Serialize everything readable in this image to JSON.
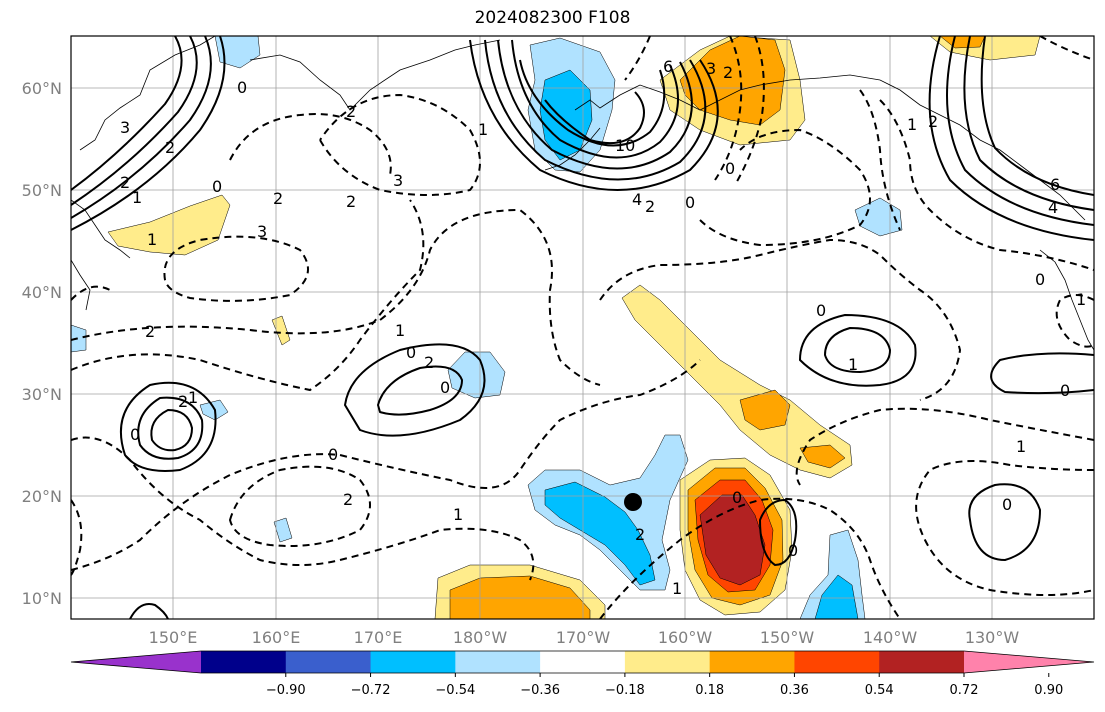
{
  "title": "2024082300 F108",
  "lat_labels": [
    "10°N",
    "20°N",
    "30°N",
    "40°N",
    "50°N",
    "60°N"
  ],
  "lon_labels": [
    "150°E",
    "160°E",
    "170°E",
    "180°W",
    "170°W",
    "160°W",
    "150°W",
    "140°W",
    "130°W"
  ],
  "colorbar": {
    "labels": [
      "−0.90",
      "−0.72",
      "−0.54",
      "−0.36",
      "−0.18",
      "0.18",
      "0.36",
      "0.54",
      "0.72",
      "0.90"
    ],
    "colors": [
      "#9932cc",
      "#00008b",
      "#3a5fcd",
      "#00bfff",
      "#b0e2ff",
      "#ffffff",
      "#ffec8b",
      "#ffa500",
      "#ff4500",
      "#b22222",
      "#ff82ab"
    ]
  },
  "contour_labels": [
    "0",
    "3",
    "2",
    "1",
    "0",
    "2",
    "3",
    "2",
    "1",
    "2",
    "0",
    "1",
    "2",
    "0",
    "2",
    "1",
    "0",
    "2",
    "3",
    "2",
    "10",
    "4",
    "2",
    "0",
    "3",
    "2",
    "6",
    "1",
    "0",
    "2",
    "1",
    "0",
    "0",
    "1",
    "1",
    "0",
    "2",
    "0",
    "1",
    "2",
    "1",
    "0",
    "0",
    "4",
    "6",
    "0",
    "1"
  ],
  "marker": "black-dot"
}
